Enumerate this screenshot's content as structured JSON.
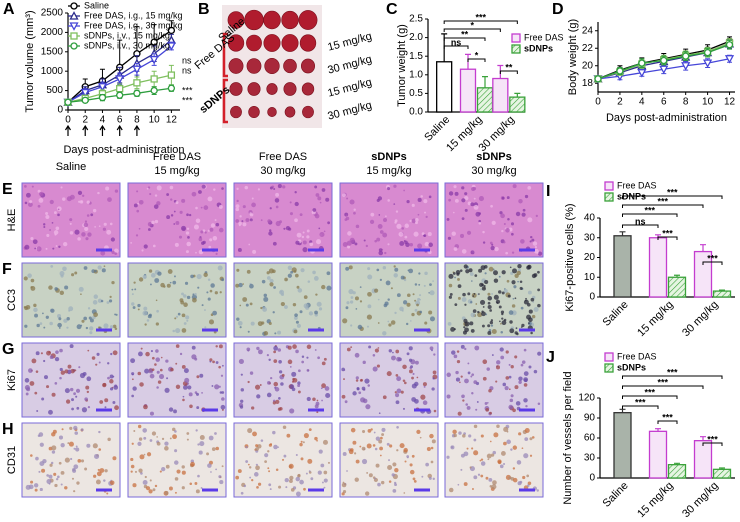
{
  "panel_labels": [
    "A",
    "B",
    "C",
    "D",
    "E",
    "F",
    "G",
    "H",
    "I",
    "J"
  ],
  "photo": {
    "row_labels": [
      "Saline",
      "Free DAS",
      "sDNPs"
    ],
    "dose_labels": [
      "15 mg/kg",
      "30 mg/kg",
      "15 mg/kg",
      "30 mg/kg"
    ]
  },
  "micrographs": {
    "columns": [
      [
        "Saline"
      ],
      [
        "Free DAS",
        "15 mg/kg"
      ],
      [
        "Free DAS",
        "30 mg/kg"
      ],
      [
        "sDNPs",
        "15 mg/kg"
      ],
      [
        "sDNPs",
        "30 mg/kg"
      ]
    ],
    "rows": [
      "H&E",
      "CC3",
      "Ki67",
      "CD31"
    ]
  },
  "chart_data": [
    {
      "type": "line",
      "ylabel": "Tumor volume (mm³)",
      "xlabel": "Days post-administration",
      "x": [
        0,
        2,
        4,
        6,
        8,
        10,
        12
      ],
      "xlim": [
        0,
        13
      ],
      "xticks": [
        0,
        2,
        4,
        6,
        8,
        10,
        12
      ],
      "ylim": [
        0,
        2500
      ],
      "yticks": [
        0,
        500,
        1000,
        1500,
        2000,
        2500
      ],
      "legend": true,
      "series": [
        {
          "name": "Saline",
          "color": "#000000",
          "marker": "circle",
          "values": [
            200,
            600,
            750,
            1100,
            1450,
            1750,
            2050
          ],
          "errors": [
            40,
            200,
            300,
            700,
            700,
            450,
            250
          ]
        },
        {
          "name": "Free DAS, i.g., 15 mg/kg",
          "color": "#2b2b8c",
          "marker": "triangle",
          "values": [
            200,
            500,
            650,
            900,
            1200,
            1450,
            1800
          ],
          "errors": [
            30,
            100,
            150,
            200,
            200,
            200,
            150
          ]
        },
        {
          "name": "Free DAS, i.g., 30 mg/kg",
          "color": "#4646d8",
          "marker": "triangle-down",
          "values": [
            200,
            450,
            600,
            800,
            1050,
            1300,
            1650
          ],
          "errors": [
            30,
            100,
            120,
            150,
            150,
            150,
            100
          ]
        },
        {
          "name": "sDNPs, i.v., 15 mg/kg",
          "color": "#7fbf5f",
          "marker": "square",
          "values": [
            200,
            300,
            420,
            550,
            700,
            800,
            900
          ],
          "errors": [
            30,
            80,
            100,
            120,
            150,
            200,
            250
          ]
        },
        {
          "name": "sDNPs, i.v., 30 mg/kg",
          "color": "#2e9e3e",
          "marker": "circle",
          "values": [
            200,
            250,
            320,
            380,
            430,
            500,
            560
          ],
          "errors": [
            30,
            60,
            80,
            80,
            80,
            100,
            80
          ]
        }
      ],
      "annotations": [
        "ns",
        "ns",
        "***",
        "***"
      ]
    },
    {
      "type": "bar",
      "ylabel": "Tumor weight (g)",
      "categories": [
        "Saline",
        "15 mg/kg",
        "30 mg/kg"
      ],
      "ylim": [
        0,
        2.5
      ],
      "yticks": [
        {
          "value": 0,
          "label": "0.0"
        },
        {
          "value": 0.5,
          "label": "0.5"
        },
        {
          "value": 1,
          "label": "1.0"
        },
        {
          "value": 1.5,
          "label": "1.5"
        },
        {
          "value": 2,
          "label": "2.0"
        },
        {
          "value": 2.5,
          "label": "2.5"
        }
      ],
      "series": [
        {
          "color": "#000000",
          "fill": "#ffffff",
          "values": [
            1.35,
            null,
            null
          ],
          "errors": [
            0.75,
            null,
            null
          ]
        },
        {
          "name": "Free DAS",
          "color": "#c43ccf",
          "fill": "#f6e4f8",
          "values": [
            null,
            1.15,
            0.9
          ],
          "errors": [
            null,
            0.4,
            0.35
          ]
        },
        {
          "name": "sDNPs",
          "color": "#3aa23a",
          "pattern": "hatch",
          "values": [
            null,
            0.65,
            0.4
          ],
          "errors": [
            null,
            0.3,
            0.1
          ]
        }
      ],
      "significance": [
        "***",
        "*",
        "**",
        "ns",
        "*",
        "**"
      ]
    },
    {
      "type": "line",
      "ylabel": "Body weight (g)",
      "xlabel": "Days post-administration",
      "x": [
        0,
        2,
        4,
        6,
        8,
        10,
        12
      ],
      "xlim": [
        0,
        12.5
      ],
      "xticks": [
        0,
        2,
        4,
        6,
        8,
        10,
        12
      ],
      "ylim": [
        17,
        25
      ],
      "yticks": [
        18,
        20,
        22,
        24
      ],
      "legend": false,
      "series": [
        {
          "color": "#000000",
          "marker": "circle",
          "values": [
            18.5,
            19.5,
            20.3,
            20.8,
            21.3,
            21.8,
            22.8
          ],
          "errors": [
            0.3,
            0.5,
            0.6,
            0.6,
            0.6,
            0.6,
            0.5
          ]
        },
        {
          "color": "#2b2b8c",
          "marker": "triangle",
          "values": [
            18.5,
            19.2,
            20,
            20.5,
            21,
            21.5,
            22.5
          ],
          "errors": [
            0.3,
            0.4,
            0.5,
            0.5,
            0.5,
            0.5,
            0.5
          ]
        },
        {
          "color": "#4646d8",
          "marker": "triangle-down",
          "values": [
            18.5,
            18.8,
            19.2,
            19.6,
            20,
            20.3,
            20.8
          ],
          "errors": [
            0.3,
            0.4,
            0.4,
            0.5,
            0.5,
            0.5,
            0.4
          ]
        },
        {
          "color": "#7fbf5f",
          "marker": "square",
          "values": [
            18.5,
            19.3,
            20.2,
            20.7,
            21.2,
            21.6,
            22.6
          ],
          "errors": [
            0.3,
            0.4,
            0.5,
            0.5,
            0.5,
            0.5,
            0.5
          ]
        },
        {
          "color": "#2e9e3e",
          "marker": "circle",
          "values": [
            18.5,
            19.4,
            20.3,
            20.6,
            21.1,
            21.5,
            22.4
          ],
          "errors": [
            0.3,
            0.4,
            0.5,
            0.5,
            0.5,
            0.5,
            0.5
          ]
        }
      ]
    },
    {
      "type": "bar",
      "ylabel": "Ki67-positive cells (%)",
      "categories": [
        "Saline",
        "15 mg/kg",
        "30 mg/kg"
      ],
      "ylim": [
        0,
        40
      ],
      "yticks": [
        0,
        10,
        20,
        30,
        40
      ],
      "series": [
        {
          "color": "#333333",
          "fill": "#a9b3a9",
          "values": [
            31,
            null,
            null
          ],
          "errors": [
            2,
            null,
            null
          ]
        },
        {
          "name": "Free DAS",
          "color": "#c43ccf",
          "fill": "#f6e4f8",
          "values": [
            null,
            30,
            23
          ],
          "errors": [
            null,
            1.5,
            3.5
          ]
        },
        {
          "name": "sDNPs",
          "color": "#3aa23a",
          "pattern": "hatch",
          "values": [
            null,
            10,
            3
          ],
          "errors": [
            null,
            1,
            0.5
          ]
        }
      ],
      "significance": [
        "***",
        "***",
        "***",
        "ns",
        "***",
        "***"
      ]
    },
    {
      "type": "bar",
      "ylabel": "Number of vessels per field",
      "categories": [
        "Saline",
        "15 mg/kg",
        "30 mg/kg"
      ],
      "ylim": [
        0,
        120
      ],
      "yticks": [
        0,
        30,
        60,
        90,
        120
      ],
      "series": [
        {
          "color": "#333333",
          "fill": "#a9b3a9",
          "values": [
            98,
            null,
            null
          ],
          "errors": [
            5,
            null,
            null
          ]
        },
        {
          "name": "Free DAS",
          "color": "#c43ccf",
          "fill": "#f6e4f8",
          "values": [
            null,
            70,
            56
          ],
          "errors": [
            null,
            4,
            6
          ]
        },
        {
          "name": "sDNPs",
          "color": "#3aa23a",
          "pattern": "hatch",
          "values": [
            null,
            20,
            13
          ],
          "errors": [
            null,
            2,
            2
          ]
        }
      ],
      "significance": [
        "***",
        "***",
        "***",
        "***",
        "***",
        "***"
      ]
    }
  ]
}
